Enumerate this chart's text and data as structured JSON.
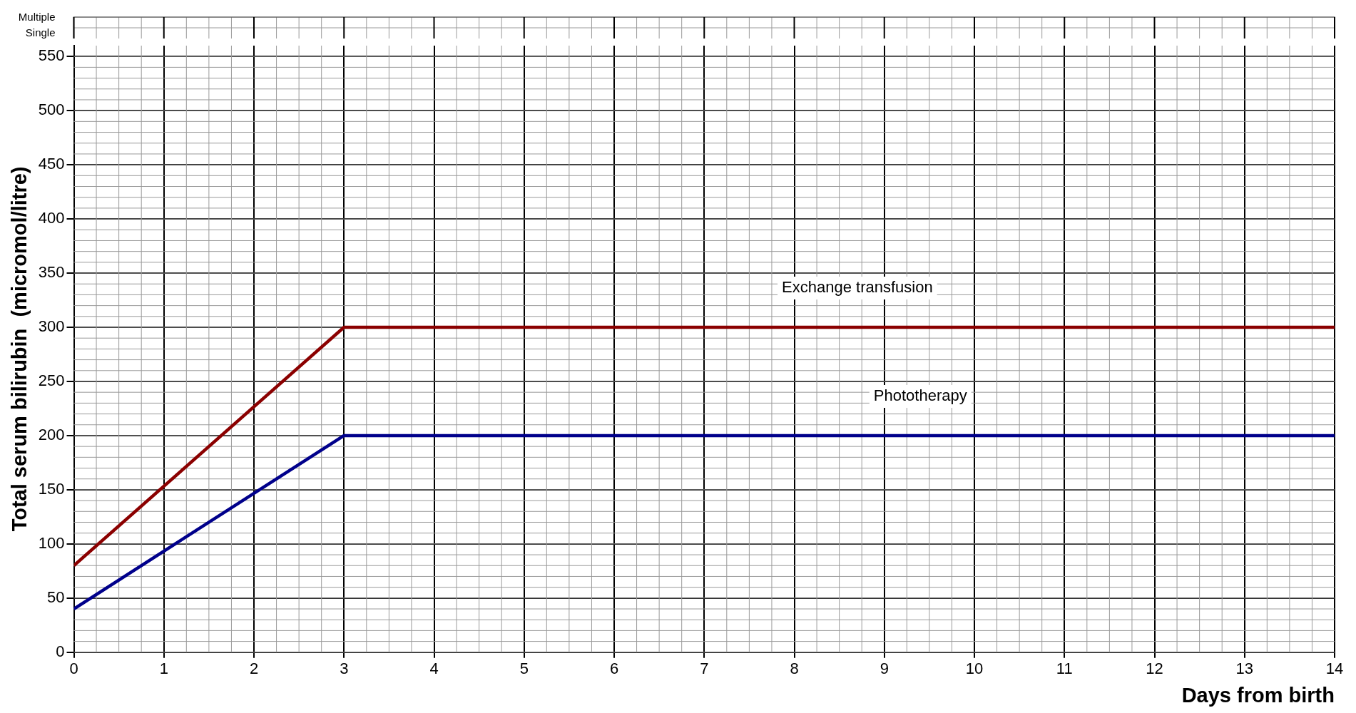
{
  "chart_data": {
    "type": "line",
    "xlabel": "Days from birth",
    "ylabel": "Total serum bilirubin  (micromol/litre)",
    "annotations": [
      "Multiple",
      "Single"
    ],
    "series": [
      {
        "name": "Exchange transfusion",
        "color": "#8b0000",
        "x": [
          0,
          3,
          14
        ],
        "values": [
          80,
          300,
          300
        ]
      },
      {
        "name": "Phototherapy",
        "color": "#00008b",
        "x": [
          0,
          3,
          14
        ],
        "values": [
          40,
          200,
          200
        ]
      }
    ],
    "xlim": [
      0,
      14
    ],
    "xticks": [
      0,
      1,
      2,
      3,
      4,
      5,
      6,
      7,
      8,
      9,
      10,
      11,
      12,
      13,
      14
    ],
    "ylim": [
      0,
      560
    ],
    "yticks": [
      0,
      50,
      100,
      150,
      200,
      250,
      300,
      350,
      400,
      450,
      500,
      550
    ],
    "grid": true,
    "legend": false,
    "marker": "none",
    "line_style": "solid"
  }
}
